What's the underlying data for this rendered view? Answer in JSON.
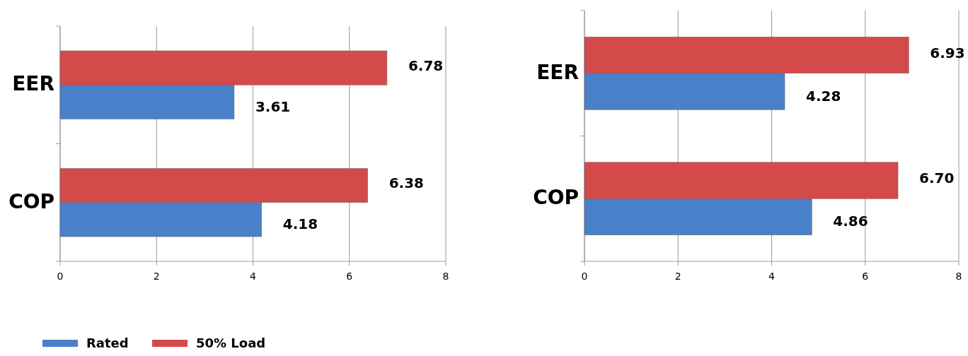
{
  "chart_data": [
    {
      "type": "bar",
      "orientation": "horizontal",
      "categories": [
        "EER",
        "COP"
      ],
      "series": [
        {
          "name": "Rated",
          "color": "#4a7fc9",
          "values": [
            3.61,
            4.18
          ]
        },
        {
          "name": "50% Load",
          "color": "#d44a4a",
          "values": [
            6.78,
            6.38
          ]
        }
      ],
      "xlim": [
        0,
        8
      ],
      "xticks": [
        0,
        2,
        4,
        6,
        8
      ],
      "grid": "x",
      "data_labels": true,
      "legend": "bottom left"
    },
    {
      "type": "bar",
      "orientation": "horizontal",
      "categories": [
        "EER",
        "COP"
      ],
      "series": [
        {
          "color": "#4a7fc9",
          "values": [
            4.28,
            4.86
          ]
        },
        {
          "color": "#d44a4a",
          "values": [
            6.93,
            6.7
          ],
          "value_labels": [
            "6.93",
            "6.70"
          ]
        }
      ],
      "xlim": [
        0,
        8
      ],
      "xticks": [
        0,
        2,
        4,
        6,
        8
      ],
      "grid": "x",
      "data_labels": true
    }
  ]
}
